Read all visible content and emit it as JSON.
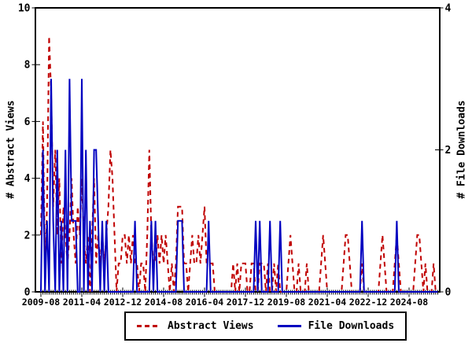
{
  "chart_data": {
    "type": "line",
    "title": "",
    "x_range": [
      "2009-08",
      "2025-10"
    ],
    "start_month": "2009-08",
    "n_months": 195,
    "x_major_tick_interval_months": 20,
    "x_major_tick_labels": [
      "2009-08",
      "2011-04",
      "2012-12",
      "2014-08",
      "2016-04",
      "2017-12",
      "2019-08",
      "2021-04",
      "2022-12",
      "2024-08"
    ],
    "left_axis": {
      "label": "# Abstract Views",
      "min": 0,
      "max": 10,
      "ticks": [
        0,
        2,
        4,
        6,
        8,
        10
      ]
    },
    "right_axis": {
      "label": "# File Downloads",
      "min": 0,
      "max": 4,
      "ticks": [
        0,
        2,
        4
      ]
    },
    "grid": false,
    "legend_position": "bottom-center",
    "series": [
      {
        "name": "Abstract Views",
        "axis": "left",
        "color": "#c00000",
        "style": "dashed",
        "monthly_values": [
          2,
          6,
          1,
          3,
          9,
          7,
          3,
          5,
          2,
          4,
          1,
          3,
          2,
          1,
          2,
          4,
          2,
          1,
          3,
          2,
          4,
          2,
          1,
          2,
          0,
          2,
          4,
          1,
          2,
          1,
          2,
          1,
          2,
          3,
          5,
          4,
          2,
          0,
          1,
          1,
          2,
          2,
          1,
          2,
          1,
          2,
          1,
          1,
          0,
          1,
          1,
          0,
          2,
          5,
          2,
          1,
          1,
          2,
          1,
          2,
          1,
          2,
          1,
          0,
          1,
          0,
          1,
          3,
          3,
          3,
          1,
          1,
          0,
          1,
          2,
          1,
          1,
          2,
          1,
          2,
          3,
          1,
          1,
          1,
          1,
          0,
          0,
          0,
          0,
          0,
          0,
          0,
          0,
          0,
          1,
          0,
          1,
          0,
          1,
          1,
          1,
          0,
          0,
          1,
          1,
          0,
          0,
          1,
          1,
          1,
          0,
          1,
          0,
          0,
          1,
          0,
          1,
          0,
          0,
          0,
          0,
          1,
          2,
          1,
          0,
          0,
          1,
          0,
          0,
          0,
          1,
          0,
          0,
          0,
          0,
          0,
          0,
          1,
          2,
          1,
          0,
          0,
          0,
          0,
          0,
          0,
          0,
          0,
          1,
          2,
          2,
          1,
          0,
          0,
          0,
          0,
          0,
          1,
          0,
          0,
          0,
          0,
          0,
          0,
          0,
          0,
          1,
          2,
          1,
          0,
          0,
          0,
          0,
          1,
          2,
          1,
          0,
          0,
          0,
          0,
          0,
          0,
          0,
          1,
          2,
          2,
          1,
          0,
          1,
          0,
          0,
          0,
          1,
          0,
          0
        ]
      },
      {
        "name": "File Downloads",
        "axis": "right",
        "color": "#0000c0",
        "style": "solid",
        "monthly_values": [
          0,
          2,
          0,
          1,
          0,
          3,
          1,
          0,
          2,
          0,
          1,
          0,
          2,
          0,
          3,
          1,
          1,
          1,
          0,
          0,
          3,
          0,
          2,
          0,
          1,
          0,
          2,
          2,
          1,
          0,
          1,
          0,
          1,
          0,
          0,
          0,
          0,
          0,
          0,
          0,
          0,
          0,
          0,
          0,
          0,
          0,
          1,
          0,
          0,
          0,
          0,
          0,
          0,
          0,
          1,
          0,
          1,
          0,
          0,
          0,
          0,
          0,
          0,
          0,
          0,
          0,
          0,
          1,
          1,
          1,
          0,
          0,
          0,
          0,
          0,
          0,
          0,
          0,
          0,
          0,
          0,
          0,
          1,
          0,
          0,
          0,
          0,
          0,
          0,
          0,
          0,
          0,
          0,
          0,
          0,
          0,
          0,
          0,
          0,
          0,
          0,
          0,
          0,
          0,
          0,
          1,
          0,
          1,
          0,
          0,
          0,
          0,
          1,
          0,
          0,
          0,
          0,
          1,
          0,
          0,
          0,
          0,
          0,
          0,
          0,
          0,
          0,
          0,
          0,
          0,
          0,
          0,
          0,
          0,
          0,
          0,
          0,
          0,
          0,
          0,
          0,
          0,
          0,
          0,
          0,
          0,
          0,
          0,
          0,
          0,
          0,
          0,
          0,
          0,
          0,
          0,
          0,
          1,
          0,
          0,
          0,
          0,
          0,
          0,
          0,
          0,
          0,
          0,
          0,
          0,
          0,
          0,
          0,
          0,
          1,
          0,
          0,
          0,
          0,
          0,
          0,
          0,
          0,
          0,
          0,
          0,
          0,
          0,
          0,
          0,
          0,
          0,
          0,
          0,
          0
        ]
      }
    ]
  },
  "legend": {
    "items": [
      {
        "label": "Abstract Views",
        "color": "#c00000",
        "style": "dashed"
      },
      {
        "label": "File Downloads",
        "color": "#0000c0",
        "style": "solid"
      }
    ]
  },
  "colors": {
    "background": "#ffffff",
    "border": "#000000",
    "abstract_views": "#c00000",
    "file_downloads": "#0000c0"
  }
}
